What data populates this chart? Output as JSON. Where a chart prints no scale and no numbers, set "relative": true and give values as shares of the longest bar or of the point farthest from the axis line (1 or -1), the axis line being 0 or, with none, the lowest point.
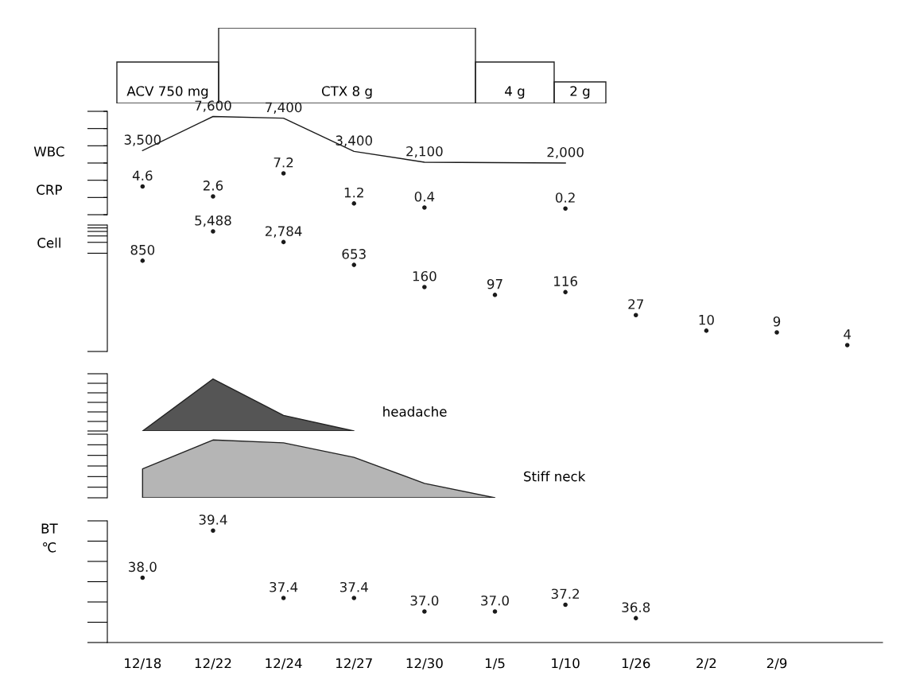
{
  "chart_data": [
    {
      "type": "other",
      "annotations": [
        "ACV 750 mg",
        "CTX 8 g",
        "4 g",
        "2 g"
      ]
    },
    {
      "type": "line",
      "ylabel": "WBC",
      "categories": [
        null,
        null,
        null,
        null,
        null,
        null,
        null,
        null,
        null,
        null,
        null
      ],
      "marker": "none",
      "tick_labels": false,
      "series": [
        {
          "color": "#1a1a1a",
          "values": [
            3500,
            7600,
            7400,
            3400,
            2100,
            null,
            2000,
            null,
            null,
            null,
            null
          ],
          "value_labels": [
            "3,500",
            "7,600",
            "7,400",
            "3,400",
            "2,100",
            null,
            "2,000",
            null,
            null,
            null,
            null
          ]
        }
      ]
    },
    {
      "type": "scatter",
      "ylabel": "CRP",
      "marker": "circle",
      "color": "#1a1a1a",
      "tick_labels": false,
      "categories": [
        null,
        null,
        null,
        null,
        null,
        null,
        null,
        null,
        null,
        null,
        null
      ],
      "values": [
        4.6,
        2.6,
        7.2,
        1.2,
        0.4,
        null,
        0.2,
        null,
        null,
        null,
        null
      ],
      "value_labels": [
        "4.6",
        "2.6",
        "7.2",
        "1.2",
        "0.4",
        null,
        "0.2",
        null,
        null,
        null,
        null
      ]
    },
    {
      "type": "scatter",
      "ylabel": "Cell",
      "log": true,
      "marker": "circle",
      "color": "#1a1a1a",
      "tick_labels": false,
      "categories": [
        null,
        null,
        null,
        null,
        null,
        null,
        null,
        null,
        null,
        null,
        null
      ],
      "values": [
        850,
        5488,
        2784,
        653,
        160,
        97,
        116,
        27,
        10,
        9,
        4
      ],
      "value_labels": [
        "850",
        "5,488",
        "2,784",
        "653",
        "160",
        "97",
        "116",
        "27",
        "10",
        "9",
        "4"
      ]
    },
    {
      "type": "area",
      "relative": true,
      "tick_labels": false,
      "categories": [
        null,
        null,
        null,
        null,
        null,
        null,
        null,
        null,
        null,
        null,
        null
      ],
      "series": [
        {
          "name": "headache",
          "color": "#555555",
          "values": [
            0,
            1,
            0.3,
            0,
            null,
            null,
            null,
            null,
            null,
            null,
            null
          ]
        }
      ]
    },
    {
      "type": "area",
      "relative": true,
      "tick_labels": false,
      "categories": [
        null,
        null,
        null,
        null,
        null,
        null,
        null,
        null,
        null,
        null,
        null
      ],
      "series": [
        {
          "name": "Stiff neck",
          "color": "#b5b5b5",
          "values": [
            0.5,
            1,
            0.95,
            0.7,
            0.25,
            0,
            null,
            null,
            null,
            null,
            null
          ]
        }
      ]
    },
    {
      "type": "scatter",
      "ylabel": "BT\n℃",
      "marker": "circle",
      "color": "#1a1a1a",
      "tick_labels": "x",
      "categories": [
        "12/18",
        "12/22",
        "12/24",
        "12/27",
        "12/30",
        "1/5",
        "1/10",
        "1/26",
        "2/2",
        "2/9",
        null
      ],
      "values": [
        38.0,
        39.4,
        37.4,
        37.4,
        37.0,
        37.0,
        37.2,
        36.8,
        null,
        null,
        null
      ],
      "value_labels": [
        "38.0",
        "39.4",
        "37.4",
        "37.4",
        "37.0",
        "37.0",
        "37.2",
        "36.8",
        null,
        null,
        null
      ]
    }
  ]
}
